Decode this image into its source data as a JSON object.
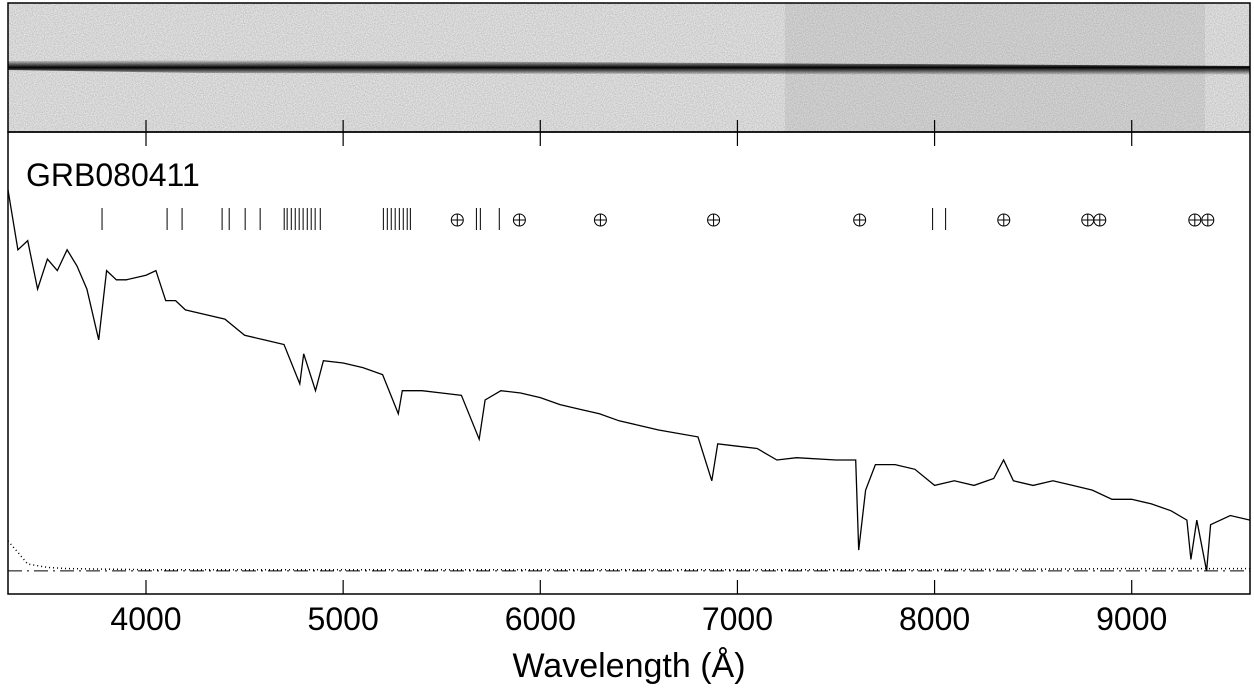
{
  "chart_data": {
    "type": "line",
    "title": "GRB080411",
    "xlabel": "Wavelength (Å)",
    "xlim": [
      3300,
      9600
    ],
    "ylim": [
      -1,
      19
    ],
    "xticks": [
      4000,
      5000,
      6000,
      7000,
      8000,
      9000
    ],
    "color": "#000000",
    "series": [
      {
        "x": [
          3300,
          3350,
          3400,
          3450,
          3500,
          3550,
          3600,
          3650,
          3700,
          3760,
          3800,
          3850,
          3900,
          4000,
          4050,
          4100,
          4150,
          4200,
          4300,
          4400,
          4500,
          4600,
          4700,
          4780,
          4800,
          4860,
          4900,
          5000,
          5100,
          5200,
          5280,
          5300,
          5400,
          5500,
          5600,
          5690,
          5720,
          5800,
          5900,
          6000,
          6100,
          6200,
          6300,
          6400,
          6500,
          6600,
          6800,
          6870,
          6900,
          7000,
          7100,
          7200,
          7300,
          7500,
          7600,
          7615,
          7650,
          7700,
          7800,
          7900,
          8000,
          8100,
          8200,
          8300,
          8350,
          8400,
          8500,
          8600,
          8700,
          8800,
          8900,
          9000,
          9100,
          9200,
          9280,
          9300,
          9330,
          9380,
          9400,
          9500,
          9600
        ],
        "values": [
          16.5,
          13.9,
          14.3,
          12.2,
          13.5,
          13.0,
          13.9,
          13.2,
          12.2,
          10.0,
          13.0,
          12.6,
          12.6,
          12.8,
          13.0,
          11.7,
          11.7,
          11.3,
          11.1,
          10.9,
          10.2,
          10.0,
          9.8,
          8.1,
          9.4,
          7.8,
          9.1,
          9.0,
          8.8,
          8.5,
          6.8,
          7.8,
          7.8,
          7.7,
          7.6,
          5.7,
          7.4,
          7.8,
          7.7,
          7.5,
          7.2,
          7.0,
          6.8,
          6.5,
          6.3,
          6.1,
          5.8,
          3.9,
          5.5,
          5.4,
          5.3,
          4.8,
          4.9,
          4.8,
          4.8,
          0.9,
          3.5,
          4.6,
          4.6,
          4.4,
          3.7,
          3.9,
          3.7,
          4.0,
          4.8,
          3.9,
          3.7,
          3.9,
          3.7,
          3.5,
          3.1,
          3.1,
          2.9,
          2.6,
          2.2,
          0.5,
          2.2,
          0.0,
          2.0,
          2.4,
          2.2
        ],
        "style": "solid"
      },
      {
        "x": [
          3300,
          3350,
          3400,
          3500,
          3600,
          4000,
          5000,
          6000,
          7000,
          8000,
          9000,
          9600
        ],
        "values": [
          1.3,
          0.8,
          0.3,
          0.15,
          0.1,
          0.05,
          0.05,
          0.05,
          0.05,
          0.05,
          0.1,
          0.1
        ],
        "style": "dotted"
      }
    ],
    "absorption_lines": [
      3777,
      4107,
      4183,
      4386,
      4422,
      4503,
      4579,
      4701,
      4716,
      4737,
      4757,
      4777,
      4797,
      4818,
      4838,
      4858,
      4884,
      5204,
      5224,
      5244,
      5264,
      5285,
      5305,
      5325,
      5341,
      5676,
      5696,
      5792,
      7990,
      8056
    ],
    "telluric_lines": [
      5579,
      5894,
      6305,
      6879,
      7620,
      8351,
      8777,
      8838,
      9320,
      9386
    ]
  }
}
